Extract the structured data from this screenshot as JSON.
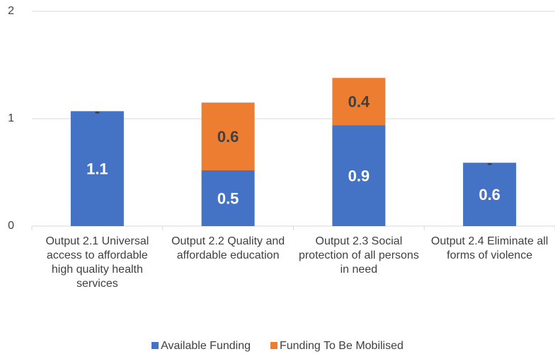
{
  "chart_data": {
    "type": "stacked_bar",
    "categories": [
      "Output 2.1 Universal access to affordable high quality health services",
      "Output 2.2 Quality and affordable education",
      "Output 2.3 Social protection of all persons in need",
      "Output 2.4 Eliminate all forms of violence"
    ],
    "series": [
      {
        "name": "Available Funding",
        "color": "#4472c4",
        "values": [
          1.07,
          0.52,
          0.94,
          0.59
        ],
        "value_labels": [
          "1.1",
          "0.5",
          "0.9",
          "0.6"
        ]
      },
      {
        "name": "Funding To Be Mobilised",
        "color": "#ed7d31",
        "values": [
          0,
          0.63,
          0.44,
          0
        ],
        "value_labels": [
          "-",
          "0.6",
          "0.4",
          "-"
        ]
      }
    ],
    "ylim": [
      0,
      2
    ],
    "yticks": [
      0,
      1,
      2
    ],
    "grid": true,
    "legend": "bottom"
  }
}
